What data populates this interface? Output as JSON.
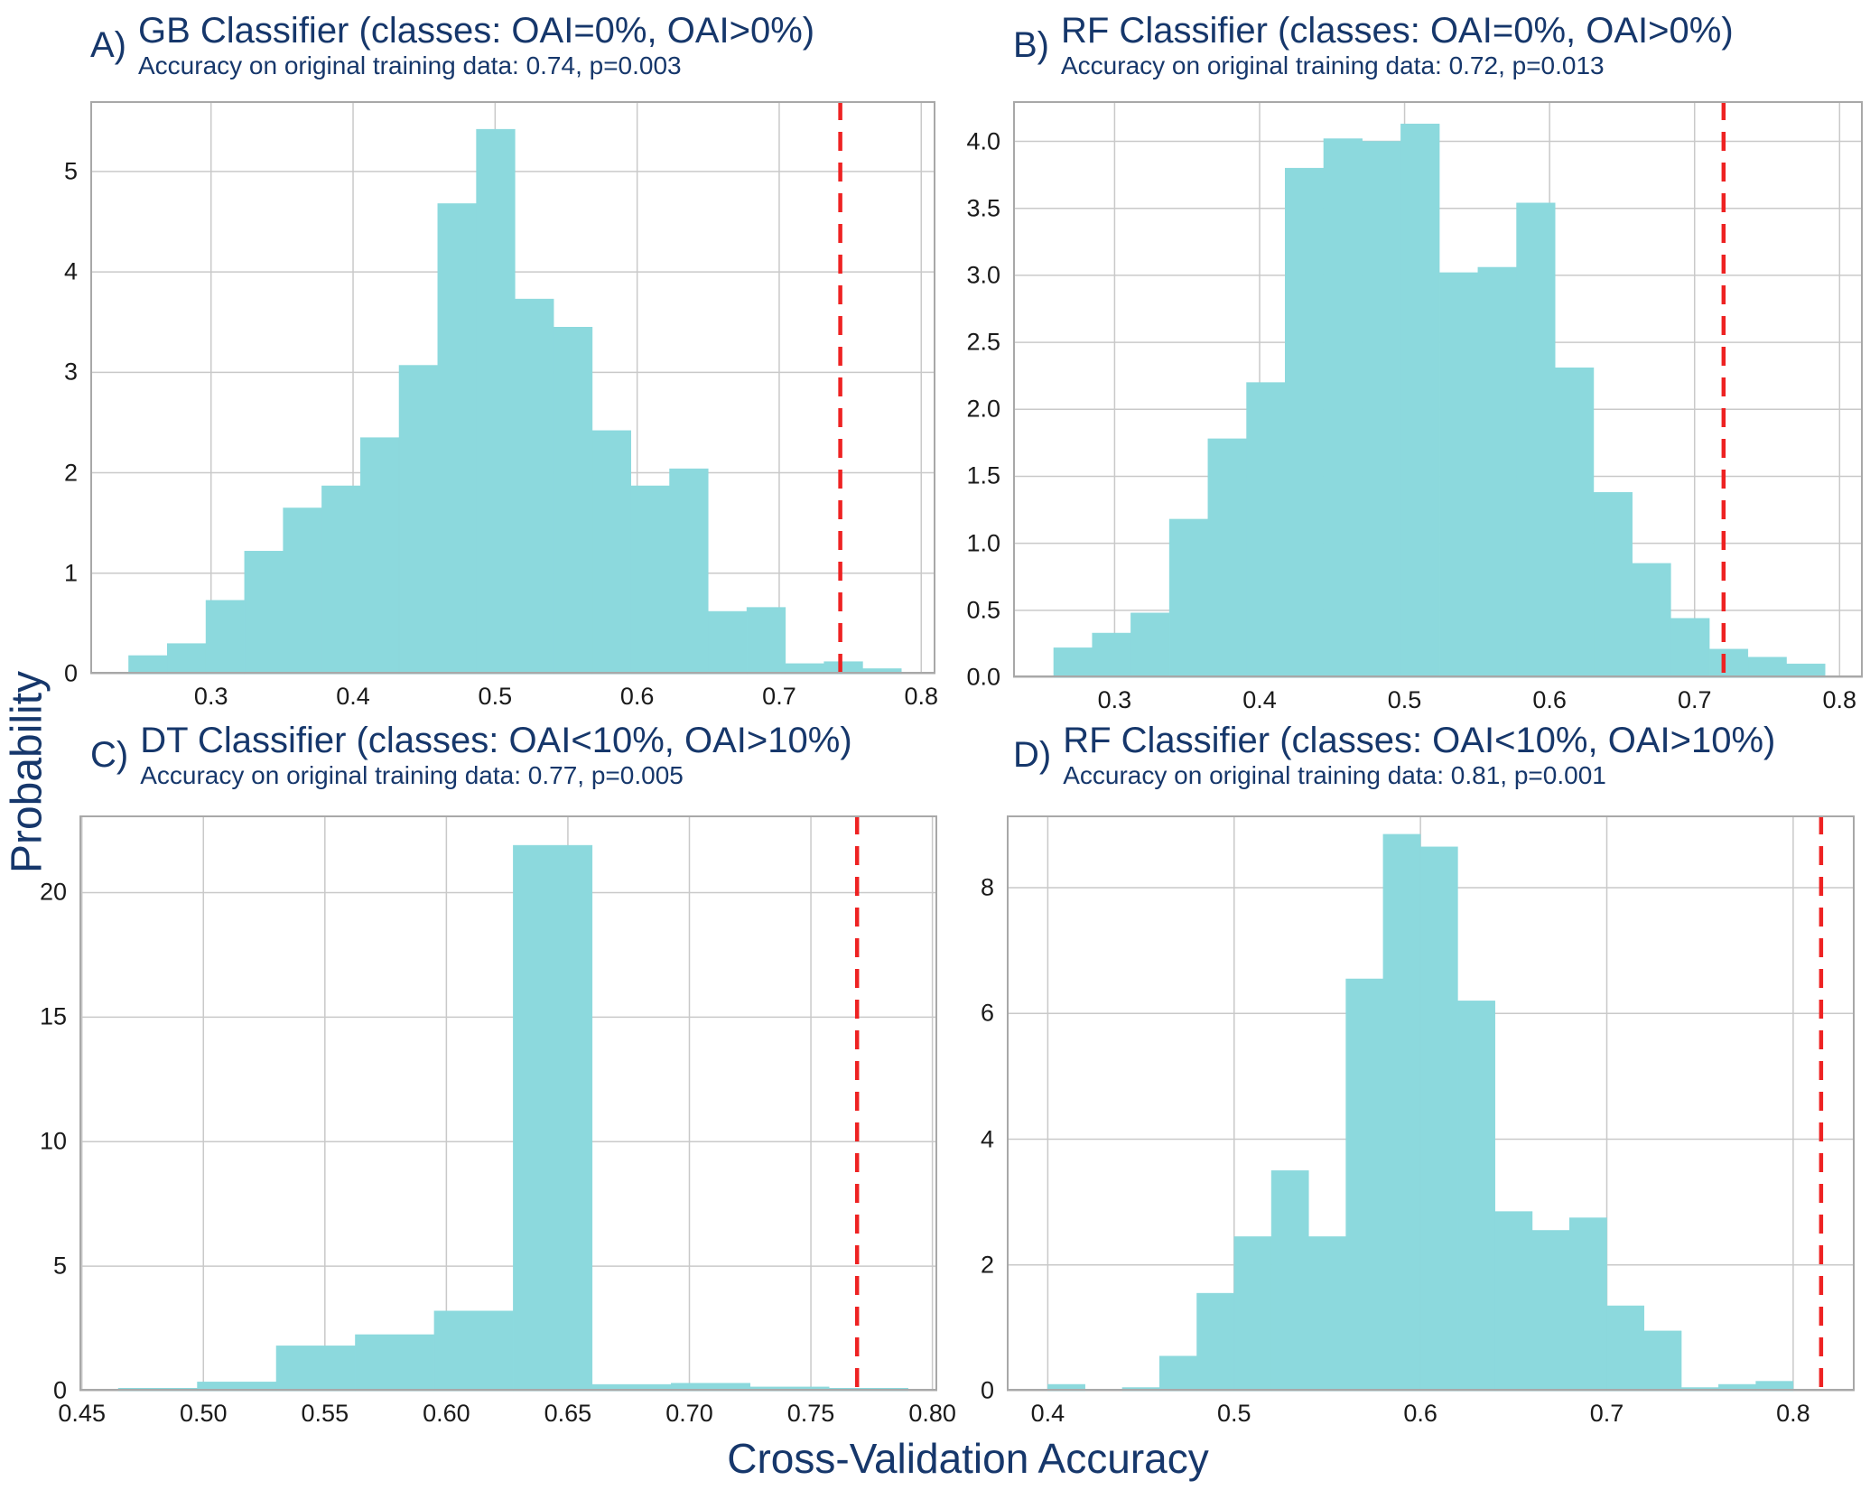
{
  "figure": {
    "ylabel": "Probability",
    "xlabel": "Cross-Validation Accuracy",
    "colors": {
      "bar": "#8cd9dd",
      "vline": "#ee2222",
      "grid": "#c9c9c9",
      "border": "#a8a8a8",
      "title_text": "#16376b",
      "tick_text": "#1a1a1a"
    }
  },
  "chart_data": [
    {
      "type": "bar",
      "panel": "A",
      "letter": "A)",
      "title": "GB Classifier (classes: OAI=0%, OAI>0%)",
      "subtitle": "Accuracy on original training data: 0.74, p=0.003",
      "accuracy_on_training": 0.74,
      "p_value": 0.003,
      "xlim": [
        0.215,
        0.81
      ],
      "ylim": [
        0,
        5.7
      ],
      "bin_start": 0.242,
      "bin_width": 0.0272,
      "heights": [
        0.18,
        0.3,
        0.73,
        1.22,
        1.65,
        1.87,
        2.35,
        3.07,
        4.68,
        5.42,
        3.73,
        3.45,
        2.42,
        1.87,
        2.04,
        0.62,
        0.66,
        0.1,
        0.12,
        0.05
      ],
      "vline": 0.743,
      "xticks": [
        {
          "v": 0.3,
          "label": "0.3"
        },
        {
          "v": 0.4,
          "label": "0.4"
        },
        {
          "v": 0.5,
          "label": "0.5"
        },
        {
          "v": 0.6,
          "label": "0.6"
        },
        {
          "v": 0.7,
          "label": "0.7"
        },
        {
          "v": 0.8,
          "label": "0.8"
        }
      ],
      "yticks": [
        {
          "v": 0,
          "label": "0"
        },
        {
          "v": 1,
          "label": "1"
        },
        {
          "v": 2,
          "label": "2"
        },
        {
          "v": 3,
          "label": "3"
        },
        {
          "v": 4,
          "label": "4"
        },
        {
          "v": 5,
          "label": "5"
        }
      ]
    },
    {
      "type": "bar",
      "panel": "B",
      "letter": "B)",
      "title": "RF Classifier (classes: OAI=0%, OAI>0%)",
      "subtitle": "Accuracy on original training data: 0.72, p=0.013",
      "accuracy_on_training": 0.72,
      "p_value": 0.013,
      "xlim": [
        0.23,
        0.816
      ],
      "ylim": [
        0,
        4.3
      ],
      "bin_start": 0.258,
      "bin_width": 0.0266,
      "heights": [
        0.22,
        0.33,
        0.48,
        1.18,
        1.78,
        2.2,
        3.8,
        4.02,
        4.0,
        4.13,
        3.02,
        3.06,
        3.54,
        2.31,
        1.38,
        0.85,
        0.44,
        0.21,
        0.15,
        0.1
      ],
      "vline": 0.72,
      "xticks": [
        {
          "v": 0.3,
          "label": "0.3"
        },
        {
          "v": 0.4,
          "label": "0.4"
        },
        {
          "v": 0.5,
          "label": "0.5"
        },
        {
          "v": 0.6,
          "label": "0.6"
        },
        {
          "v": 0.7,
          "label": "0.7"
        },
        {
          "v": 0.8,
          "label": "0.8"
        }
      ],
      "yticks": [
        {
          "v": 0,
          "label": "0.0"
        },
        {
          "v": 0.5,
          "label": "0.5"
        },
        {
          "v": 1,
          "label": "1.0"
        },
        {
          "v": 1.5,
          "label": "1.5"
        },
        {
          "v": 2,
          "label": "2.0"
        },
        {
          "v": 2.5,
          "label": "2.5"
        },
        {
          "v": 3,
          "label": "3.0"
        },
        {
          "v": 3.5,
          "label": "3.5"
        },
        {
          "v": 4,
          "label": "4.0"
        }
      ]
    },
    {
      "type": "bar",
      "panel": "C",
      "letter": "C)",
      "title": "DT Classifier (classes: OAI<10%, OAI>10%)",
      "subtitle": "Accuracy on original training data: 0.77, p=0.005",
      "accuracy_on_training": 0.77,
      "p_value": 0.005,
      "xlim": [
        0.449,
        0.802
      ],
      "ylim": [
        0,
        23.1
      ],
      "bin_start": 0.465,
      "bin_width": 0.0325,
      "heights": [
        0.1,
        0.35,
        1.8,
        2.25,
        3.2,
        21.9,
        0.25,
        0.3,
        0.15,
        0.1
      ],
      "vline": 0.769,
      "xticks": [
        {
          "v": 0.45,
          "label": "0.45"
        },
        {
          "v": 0.5,
          "label": "0.50"
        },
        {
          "v": 0.55,
          "label": "0.55"
        },
        {
          "v": 0.6,
          "label": "0.60"
        },
        {
          "v": 0.65,
          "label": "0.65"
        },
        {
          "v": 0.7,
          "label": "0.70"
        },
        {
          "v": 0.75,
          "label": "0.75"
        },
        {
          "v": 0.8,
          "label": "0.80"
        }
      ],
      "yticks": [
        {
          "v": 0,
          "label": "0"
        },
        {
          "v": 5,
          "label": "5"
        },
        {
          "v": 10,
          "label": "10"
        },
        {
          "v": 15,
          "label": "15"
        },
        {
          "v": 20,
          "label": "20"
        }
      ]
    },
    {
      "type": "bar",
      "panel": "D",
      "letter": "D)",
      "title": "RF Classifier (classes: OAI<10%, OAI>10%)",
      "subtitle": "Accuracy on original training data: 0.81, p=0.001",
      "accuracy_on_training": 0.81,
      "p_value": 0.001,
      "xlim": [
        0.378,
        0.833
      ],
      "ylim": [
        0,
        9.15
      ],
      "bin_start": 0.4,
      "bin_width": 0.02,
      "heights": [
        0.1,
        0.0,
        0.05,
        0.55,
        1.55,
        2.45,
        3.5,
        2.45,
        6.55,
        8.85,
        8.65,
        6.2,
        2.85,
        2.55,
        2.75,
        1.35,
        0.95,
        0.05,
        0.1,
        0.15
      ],
      "vline": 0.815,
      "xticks": [
        {
          "v": 0.4,
          "label": "0.4"
        },
        {
          "v": 0.5,
          "label": "0.5"
        },
        {
          "v": 0.6,
          "label": "0.6"
        },
        {
          "v": 0.7,
          "label": "0.7"
        },
        {
          "v": 0.8,
          "label": "0.8"
        }
      ],
      "yticks": [
        {
          "v": 0,
          "label": "0"
        },
        {
          "v": 2,
          "label": "2"
        },
        {
          "v": 4,
          "label": "4"
        },
        {
          "v": 6,
          "label": "6"
        },
        {
          "v": 8,
          "label": "8"
        }
      ]
    }
  ]
}
